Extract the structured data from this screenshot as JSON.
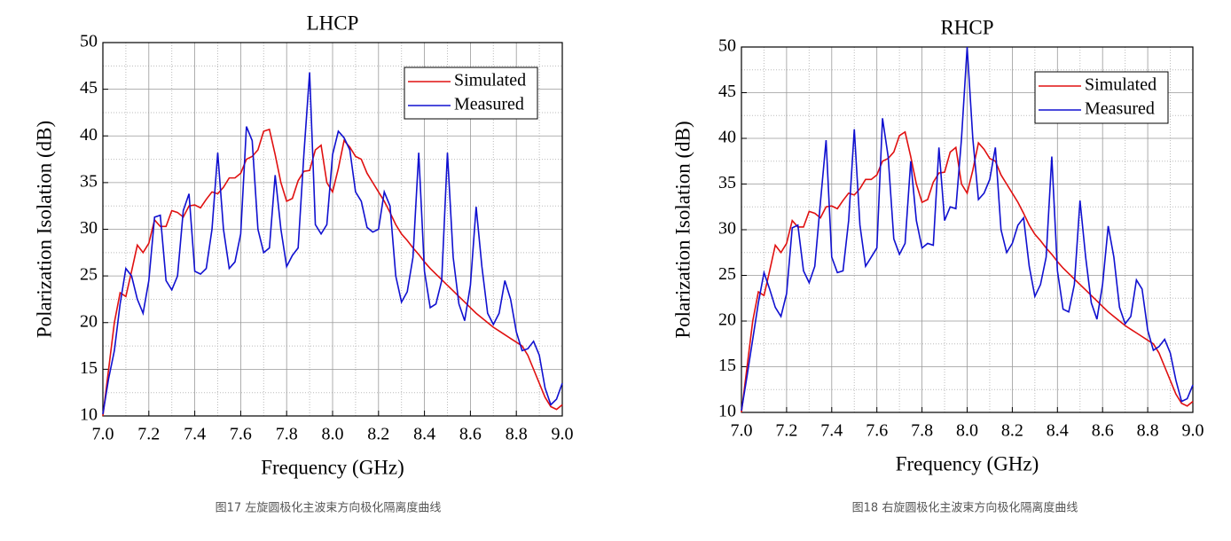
{
  "chart_data": [
    {
      "type": "line",
      "title": "LHCP",
      "x_label": "Frequency (GHz)",
      "y_label": "Polarization Isolation (dB)",
      "caption": "图17 左旋圆极化主波束方向极化隔离度曲线",
      "xlim": [
        7,
        9
      ],
      "ylim": [
        10,
        50
      ],
      "xticks": [
        {
          "value": 7,
          "label": "7.0"
        },
        7.2,
        7.4,
        7.6,
        7.8,
        {
          "value": 8,
          "label": "8.0"
        },
        8.2,
        8.4,
        8.6,
        8.8,
        {
          "value": 9,
          "label": "9.0"
        }
      ],
      "yticks": [
        10,
        15,
        20,
        25,
        30,
        35,
        40,
        45,
        50
      ],
      "grid": true,
      "legend": "upper right",
      "x": [
        7,
        7.025,
        7.05,
        7.075,
        7.1,
        7.125,
        7.15,
        7.175,
        7.2,
        7.225,
        7.25,
        7.275,
        7.3,
        7.325,
        7.35,
        7.375,
        7.4,
        7.425,
        7.45,
        7.475,
        7.5,
        7.525,
        7.55,
        7.575,
        7.6,
        7.625,
        7.65,
        7.675,
        7.7,
        7.725,
        7.75,
        7.775,
        7.8,
        7.825,
        7.85,
        7.875,
        7.9,
        7.925,
        7.95,
        7.975,
        8,
        8.025,
        8.05,
        8.075,
        8.1,
        8.125,
        8.15,
        8.175,
        8.2,
        8.225,
        8.25,
        8.275,
        8.3,
        8.325,
        8.35,
        8.375,
        8.4,
        8.425,
        8.45,
        8.475,
        8.5,
        8.525,
        8.55,
        8.575,
        8.6,
        8.625,
        8.65,
        8.675,
        8.7,
        8.725,
        8.75,
        8.775,
        8.8,
        8.825,
        8.85,
        8.875,
        8.9,
        8.925,
        8.95,
        8.975,
        9
      ],
      "series": [
        {
          "name": "Simulated",
          "color": "#e01010",
          "values": [
            10,
            15,
            20,
            23.2,
            22.8,
            25.5,
            28.3,
            27.5,
            28.5,
            31,
            30.3,
            30.3,
            32,
            31.8,
            31.3,
            32.5,
            32.6,
            32.3,
            33.2,
            34,
            33.8,
            34.5,
            35.5,
            35.5,
            36,
            37.5,
            37.8,
            38.5,
            40.5,
            40.7,
            38,
            35,
            33,
            33.3,
            35.2,
            36.2,
            36.3,
            38.5,
            39,
            35,
            34,
            36.5,
            39.5,
            38.8,
            37.8,
            37.5,
            36,
            35,
            34,
            33,
            31.8,
            30.5,
            29.5,
            28.8,
            28,
            27.3,
            26.5,
            25.8,
            25.2,
            24.6,
            24,
            23.4,
            22.8,
            22.2,
            21.6,
            21,
            20.5,
            20,
            19.5,
            19.1,
            18.7,
            18.3,
            17.9,
            17.5,
            16.5,
            15,
            13.5,
            12,
            11,
            10.7,
            11.2
          ]
        },
        {
          "name": "Measured",
          "color": "#1010d0",
          "values": [
            10.2,
            14,
            17,
            22,
            25.8,
            25,
            22.5,
            21,
            24.5,
            31.3,
            31.5,
            24.5,
            23.5,
            25,
            32,
            33.8,
            25.5,
            25.2,
            25.8,
            30,
            38.2,
            30,
            25.8,
            26.5,
            29.5,
            41,
            39.5,
            30,
            27.5,
            28,
            35.8,
            30,
            26,
            27.2,
            28,
            38,
            46.8,
            30.5,
            29.5,
            30.5,
            38,
            40.5,
            39.8,
            38.5,
            34,
            33,
            30.2,
            29.7,
            30,
            34,
            32.5,
            25,
            22.2,
            23.3,
            27,
            38.2,
            25.5,
            21.6,
            22,
            24.5,
            38.2,
            27,
            22,
            20.2,
            24,
            32.4,
            26,
            21,
            19.8,
            21,
            24.5,
            22.5,
            19,
            17,
            17.2,
            18,
            16.5,
            13,
            11.2,
            11.8,
            13.5
          ]
        }
      ]
    },
    {
      "type": "line",
      "title": "RHCP",
      "x_label": "Frequency (GHz)",
      "y_label": "Polarization Isolation (dB)",
      "caption": "图18 右旋圆极化主波束方向极化隔离度曲线",
      "xlim": [
        7,
        9
      ],
      "ylim": [
        10,
        50
      ],
      "xticks": [
        {
          "value": 7,
          "label": "7.0"
        },
        7.2,
        7.4,
        7.6,
        7.8,
        {
          "value": 8,
          "label": "8.0"
        },
        8.2,
        8.4,
        8.6,
        8.8,
        {
          "value": 9,
          "label": "9.0"
        }
      ],
      "yticks": [
        10,
        15,
        20,
        25,
        30,
        35,
        40,
        45,
        50
      ],
      "grid": true,
      "legend": "upper right",
      "x": [
        7,
        7.025,
        7.05,
        7.075,
        7.1,
        7.125,
        7.15,
        7.175,
        7.2,
        7.225,
        7.25,
        7.275,
        7.3,
        7.325,
        7.35,
        7.375,
        7.4,
        7.425,
        7.45,
        7.475,
        7.5,
        7.525,
        7.55,
        7.575,
        7.6,
        7.625,
        7.65,
        7.675,
        7.7,
        7.725,
        7.75,
        7.775,
        7.8,
        7.825,
        7.85,
        7.875,
        7.9,
        7.925,
        7.95,
        7.975,
        8,
        8.025,
        8.05,
        8.075,
        8.1,
        8.125,
        8.15,
        8.175,
        8.2,
        8.225,
        8.25,
        8.275,
        8.3,
        8.325,
        8.35,
        8.375,
        8.4,
        8.425,
        8.45,
        8.475,
        8.5,
        8.525,
        8.55,
        8.575,
        8.6,
        8.625,
        8.65,
        8.675,
        8.7,
        8.725,
        8.75,
        8.775,
        8.8,
        8.825,
        8.85,
        8.875,
        8.9,
        8.925,
        8.95,
        8.975,
        9
      ],
      "series": [
        {
          "name": "Simulated",
          "color": "#e01010",
          "values": [
            10,
            15,
            20,
            23.2,
            22.8,
            25.5,
            28.3,
            27.5,
            28.5,
            31,
            30.3,
            30.3,
            32,
            31.8,
            31.3,
            32.5,
            32.6,
            32.3,
            33.2,
            34,
            33.8,
            34.5,
            35.5,
            35.5,
            36,
            37.5,
            37.8,
            38.5,
            40.3,
            40.7,
            38,
            35,
            33,
            33.3,
            35.2,
            36.2,
            36.3,
            38.5,
            39,
            35,
            34,
            36.5,
            39.5,
            38.8,
            37.8,
            37.5,
            36,
            35,
            34,
            33,
            31.8,
            30.5,
            29.5,
            28.8,
            28,
            27.3,
            26.5,
            25.8,
            25.2,
            24.6,
            24,
            23.4,
            22.8,
            22.2,
            21.6,
            21,
            20.5,
            20,
            19.5,
            19.1,
            18.7,
            18.3,
            17.9,
            17.5,
            16.5,
            15,
            13.5,
            12,
            11,
            10.7,
            11.2
          ]
        },
        {
          "name": "Measured",
          "color": "#1010d0",
          "values": [
            10.2,
            14,
            18,
            22,
            25.3,
            23.5,
            21.5,
            20.5,
            23,
            30.2,
            30.5,
            25.5,
            24.2,
            26,
            33,
            39.8,
            27,
            25.3,
            25.5,
            31,
            41,
            30.5,
            26,
            27,
            28,
            42.2,
            38,
            29,
            27.3,
            28.5,
            37.5,
            31,
            28,
            28.5,
            28.3,
            39,
            31,
            32.5,
            32.3,
            40,
            50,
            40,
            33.3,
            34,
            35.5,
            39,
            30,
            27.5,
            28.5,
            30.5,
            31.3,
            26,
            22.7,
            24,
            27,
            38,
            25.5,
            21.3,
            21,
            24,
            33.2,
            27,
            22,
            20.2,
            24,
            30.4,
            27,
            21.5,
            19.7,
            20.5,
            24.5,
            23.5,
            19,
            16.8,
            17.2,
            18,
            16.5,
            13.5,
            11.2,
            11.5,
            13
          ]
        }
      ]
    }
  ]
}
